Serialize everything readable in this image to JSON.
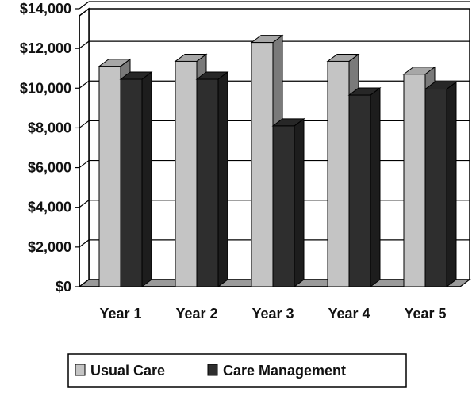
{
  "chart_data": {
    "type": "bar",
    "title": "",
    "xlabel": "",
    "ylabel": "",
    "categories": [
      "Year 1",
      "Year 2",
      "Year 3",
      "Year 4",
      "Year 5"
    ],
    "series": [
      {
        "name": "Usual Care",
        "values": [
          11100,
          11350,
          12300,
          11350,
          10700
        ],
        "color": "#c4c4c4"
      },
      {
        "name": "Care Management",
        "values": [
          10450,
          10450,
          8100,
          9650,
          9950
        ],
        "color": "#2e2e2e"
      }
    ],
    "ylim": [
      0,
      14000
    ],
    "yticks": [
      0,
      2000,
      4000,
      6000,
      8000,
      10000,
      12000,
      14000
    ],
    "ytick_labels": [
      "$0",
      "$2,000",
      "$4,000",
      "$6,000",
      "$8,000",
      "$10,000",
      "$12,000",
      "$14,000"
    ],
    "grid": true,
    "legend_position": "bottom"
  }
}
